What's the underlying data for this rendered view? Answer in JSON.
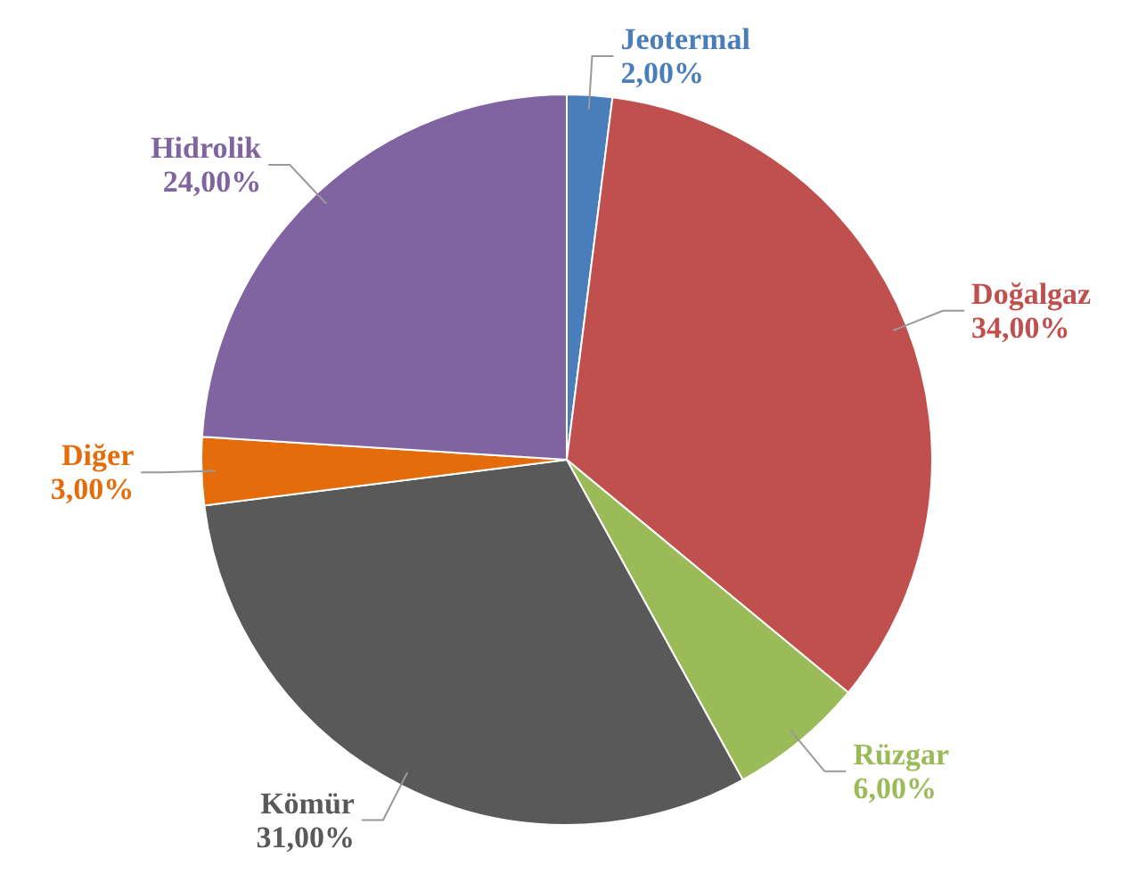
{
  "chart_data": {
    "type": "pie",
    "categories": [
      "Jeotermal",
      "Doğalgaz",
      "Rüzgar",
      "Kömür",
      "Diğer",
      "Hidrolik"
    ],
    "values": [
      2,
      34,
      6,
      31,
      3,
      24
    ],
    "colors": [
      "#4a7ebb",
      "#c0504d",
      "#9bbb59",
      "#595959",
      "#e46c0a",
      "#8064a2"
    ],
    "value_labels": [
      "2,00%",
      "34,00%",
      "6,00%",
      "31,00%",
      "3,00%",
      "24,00%"
    ],
    "legend": false
  }
}
